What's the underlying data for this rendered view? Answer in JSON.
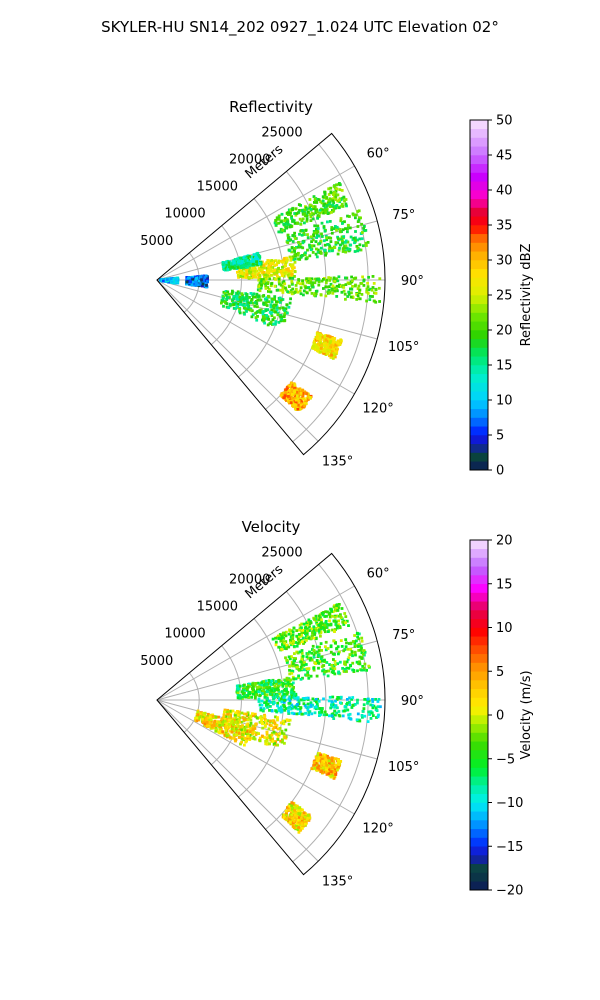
{
  "suptitle": "SKYLER-HU  SN14_202  0927_1.024 UTC Elevation 02°",
  "chart_data": [
    {
      "type": "polar-sector",
      "title": "Reflectivity",
      "radial_label": "Meters",
      "radial_ticks": [
        5000,
        10000,
        15000,
        20000,
        25000
      ],
      "r_max": 27000,
      "theta_range_deg": [
        50,
        140
      ],
      "theta_ticks": [
        "60°",
        "75°",
        "90°",
        "105°",
        "120°",
        "135°"
      ],
      "colorbar": {
        "label": "Reflectivity dBZ",
        "range": [
          0,
          50
        ],
        "ticks": [
          "0",
          "5",
          "10",
          "15",
          "20",
          "25",
          "30",
          "35",
          "40",
          "45",
          "50"
        ]
      },
      "echo_regions": [
        {
          "theta": [
            62,
            69
          ],
          "r": [
            15500,
            24500
          ],
          "value": 20
        },
        {
          "theta": [
            71,
            82
          ],
          "r": [
            16000,
            25500
          ],
          "value": 19
        },
        {
          "theta": [
            80,
            89
          ],
          "r": [
            9500,
            16500
          ],
          "value": 26
        },
        {
          "theta": [
            89,
            96
          ],
          "r": [
            12000,
            26500
          ],
          "value": 21
        },
        {
          "theta": [
            75,
            82
          ],
          "r": [
            8000,
            12500
          ],
          "value": 15
        },
        {
          "theta": [
            85,
            98
          ],
          "r": [
            3500,
            6000
          ],
          "value": 6
        },
        {
          "theta": [
            84,
            100
          ],
          "r": [
            400,
            2500
          ],
          "value": 10
        },
        {
          "theta": [
            98,
            112
          ],
          "r": [
            8000,
            16000
          ],
          "value": 18
        },
        {
          "theta": [
            108,
            114
          ],
          "r": [
            20000,
            23000
          ],
          "value": 28
        },
        {
          "theta": [
            127,
            133
          ],
          "r": [
            20000,
            23000
          ],
          "value": 30
        }
      ]
    },
    {
      "type": "polar-sector",
      "title": "Velocity",
      "radial_label": "Meters",
      "radial_ticks": [
        5000,
        10000,
        15000,
        20000,
        25000
      ],
      "r_max": 27000,
      "theta_range_deg": [
        50,
        140
      ],
      "theta_ticks": [
        "60°",
        "75°",
        "90°",
        "105°",
        "120°",
        "135°"
      ],
      "colorbar": {
        "label": "Velocity (m/s)",
        "range": [
          -20,
          20
        ],
        "ticks": [
          "−20",
          "−15",
          "−10",
          "−5",
          "0",
          "5",
          "10",
          "15",
          "20"
        ]
      },
      "echo_regions": [
        {
          "theta": [
            62,
            69
          ],
          "r": [
            15500,
            24500
          ],
          "value": -3
        },
        {
          "theta": [
            71,
            82
          ],
          "r": [
            16000,
            25500
          ],
          "value": -4
        },
        {
          "theta": [
            80,
            89
          ],
          "r": [
            9500,
            16500
          ],
          "value": -5
        },
        {
          "theta": [
            89,
            96
          ],
          "r": [
            12000,
            26500
          ],
          "value": -8
        },
        {
          "theta": [
            98,
            112
          ],
          "r": [
            8000,
            16000
          ],
          "value": 1
        },
        {
          "theta": [
            105,
            118
          ],
          "r": [
            5000,
            12000
          ],
          "value": 2
        },
        {
          "theta": [
            108,
            114
          ],
          "r": [
            20000,
            23000
          ],
          "value": 3
        },
        {
          "theta": [
            127,
            133
          ],
          "r": [
            20000,
            23000
          ],
          "value": 2
        }
      ]
    }
  ]
}
